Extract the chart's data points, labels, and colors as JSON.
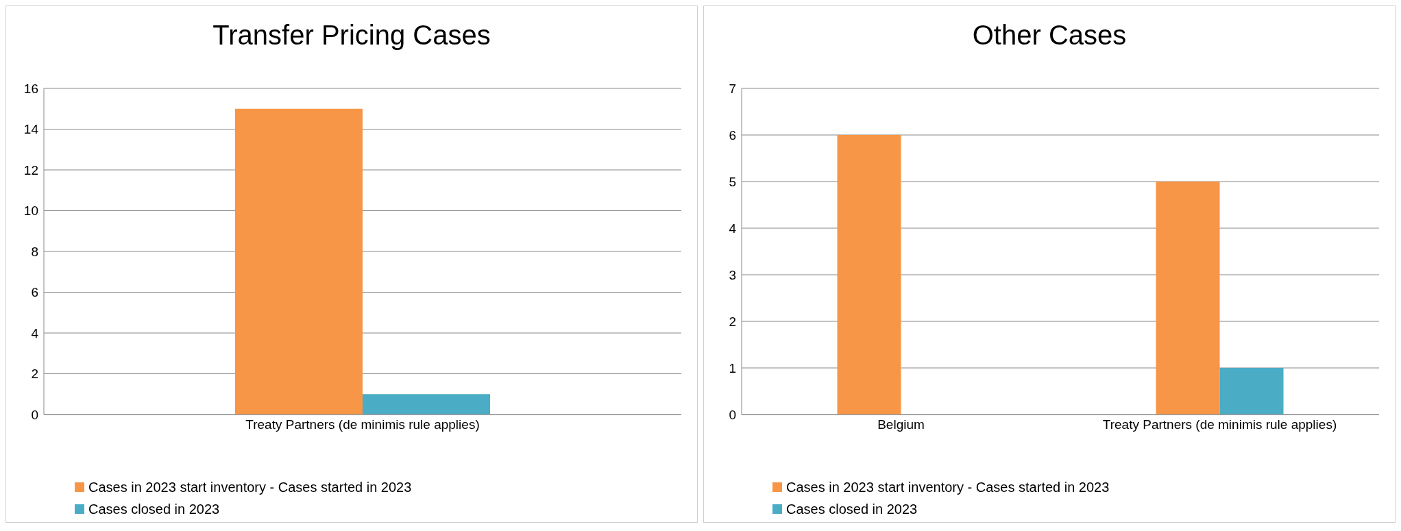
{
  "chart_data": [
    {
      "type": "bar",
      "title": "Transfer Pricing Cases",
      "categories": [
        "Treaty Partners (de minimis rule applies)"
      ],
      "series": [
        {
          "name": "Cases in 2023 start inventory - Cases started in 2023",
          "color": "#f79646",
          "values": [
            15
          ]
        },
        {
          "name": "Cases closed in 2023",
          "color": "#4bacc6",
          "values": [
            1
          ]
        }
      ],
      "ylim": [
        0,
        16
      ],
      "yticks": [
        0,
        2,
        4,
        6,
        8,
        10,
        12,
        14,
        16
      ],
      "grid": "y",
      "legend": "bottom"
    },
    {
      "type": "bar",
      "title": "Other Cases",
      "categories": [
        "Belgium",
        "Treaty Partners (de minimis rule applies)"
      ],
      "series": [
        {
          "name": "Cases in 2023 start inventory - Cases started in 2023",
          "color": "#f79646",
          "values": [
            6,
            5
          ]
        },
        {
          "name": "Cases closed in 2023",
          "color": "#4bacc6",
          "values": [
            0,
            1
          ]
        }
      ],
      "ylim": [
        0,
        7
      ],
      "yticks": [
        0,
        1,
        2,
        3,
        4,
        5,
        6,
        7
      ],
      "grid": "y",
      "legend": "bottom"
    }
  ]
}
